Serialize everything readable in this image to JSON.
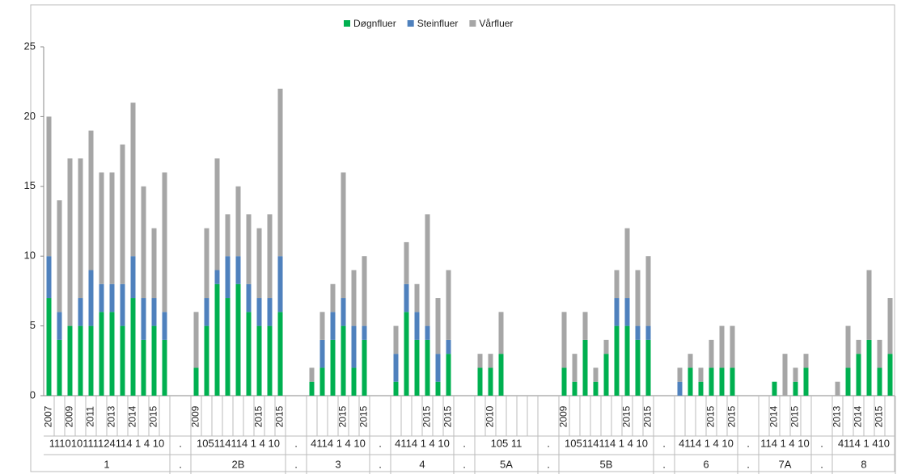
{
  "chart_data": {
    "type": "stacked-bar",
    "series": [
      {
        "name": "Døgnfluer",
        "color": "#00b050"
      },
      {
        "name": "Steinfluer",
        "color": "#4f81bd"
      },
      {
        "name": "Vårfluer",
        "color": "#a6a6a6"
      }
    ],
    "ylim": [
      0,
      25
    ],
    "yticks": [
      0,
      5,
      10,
      15,
      20,
      25
    ],
    "separator": ".",
    "groups": [
      {
        "name": "1",
        "codes": "111010111124114 1 4 10",
        "categories": [
          "2007",
          null,
          "2009",
          null,
          "2011",
          null,
          "2013",
          null,
          "2014",
          null,
          "2015",
          null
        ],
        "values": [
          [
            7,
            3,
            10
          ],
          [
            4,
            2,
            8
          ],
          [
            5,
            0,
            12
          ],
          [
            5,
            2,
            10
          ],
          [
            5,
            4,
            10
          ],
          [
            6,
            2,
            8
          ],
          [
            6,
            2,
            8
          ],
          [
            5,
            3,
            10
          ],
          [
            7,
            3,
            11
          ],
          [
            4,
            3,
            8
          ],
          [
            5,
            2,
            5
          ],
          [
            4,
            2,
            10
          ]
        ]
      },
      {
        "name": "2B",
        "codes": "105114114 1 4 10",
        "categories": [
          "2009",
          null,
          null,
          null,
          null,
          null,
          "2015",
          null,
          "2015"
        ],
        "values": [
          [
            2,
            0,
            4
          ],
          [
            5,
            2,
            5
          ],
          [
            8,
            1,
            8
          ],
          [
            7,
            3,
            3
          ],
          [
            8,
            2,
            5
          ],
          [
            6,
            2,
            5
          ],
          [
            5,
            2,
            5
          ],
          [
            5,
            2,
            6
          ],
          [
            6,
            4,
            12
          ]
        ]
      },
      {
        "name": "3",
        "codes": "4114 1 4 10",
        "categories": [
          null,
          null,
          null,
          "2015",
          null,
          "2015"
        ],
        "values": [
          [
            1,
            0,
            1
          ],
          [
            2,
            2,
            2
          ],
          [
            4,
            2,
            2
          ],
          [
            5,
            2,
            9
          ],
          [
            2,
            3,
            4
          ],
          [
            4,
            1,
            5
          ]
        ]
      },
      {
        "name": "4",
        "codes": "4114 1 4 10",
        "categories": [
          null,
          null,
          null,
          "2015",
          null,
          "2015"
        ],
        "values": [
          [
            1,
            2,
            2
          ],
          [
            6,
            2,
            3
          ],
          [
            4,
            2,
            2
          ],
          [
            4,
            1,
            8
          ],
          [
            1,
            2,
            4
          ],
          [
            3,
            1,
            5
          ]
        ]
      },
      {
        "name": "5A",
        "codes": "105    11",
        "categories": [
          null,
          "2010",
          null,
          null,
          null,
          null
        ],
        "values": [
          [
            2,
            0,
            1
          ],
          [
            2,
            0,
            1
          ],
          [
            3,
            0,
            3
          ],
          null,
          null,
          null
        ]
      },
      {
        "name": "5B",
        "codes": "105114114 1 4 10",
        "categories": [
          "2009",
          null,
          null,
          null,
          null,
          null,
          "2015",
          null,
          "2015"
        ],
        "values": [
          [
            2,
            0,
            4
          ],
          [
            1,
            0,
            2
          ],
          [
            4,
            0,
            2
          ],
          [
            1,
            0,
            1
          ],
          [
            3,
            0,
            1
          ],
          [
            5,
            2,
            2
          ],
          [
            5,
            2,
            5
          ],
          [
            4,
            1,
            4
          ],
          [
            4,
            1,
            5
          ]
        ]
      },
      {
        "name": "6",
        "codes": "4114 1 4 10",
        "categories": [
          null,
          null,
          null,
          "2015",
          null,
          "2015"
        ],
        "values": [
          [
            0,
            1,
            1
          ],
          [
            2,
            0,
            1
          ],
          [
            1,
            0,
            1
          ],
          [
            2,
            0,
            2
          ],
          [
            2,
            0,
            3
          ],
          [
            2,
            0,
            3
          ]
        ]
      },
      {
        "name": "7A",
        "codes": "114 1 4 10",
        "categories": [
          null,
          "2014",
          null,
          "2015",
          null
        ],
        "values": [
          null,
          [
            1,
            0,
            0
          ],
          [
            0,
            0,
            3
          ],
          [
            1,
            0,
            1
          ],
          [
            2,
            0,
            1
          ]
        ]
      },
      {
        "name": "8",
        "codes": "4114 1 410",
        "categories": [
          "2013",
          null,
          "2014",
          null,
          "2015",
          null
        ],
        "values": [
          [
            0,
            0,
            1
          ],
          [
            2,
            0,
            3
          ],
          [
            3,
            0,
            1
          ],
          [
            4,
            0,
            5
          ],
          [
            2,
            0,
            2
          ],
          [
            3,
            0,
            4
          ]
        ]
      }
    ]
  }
}
